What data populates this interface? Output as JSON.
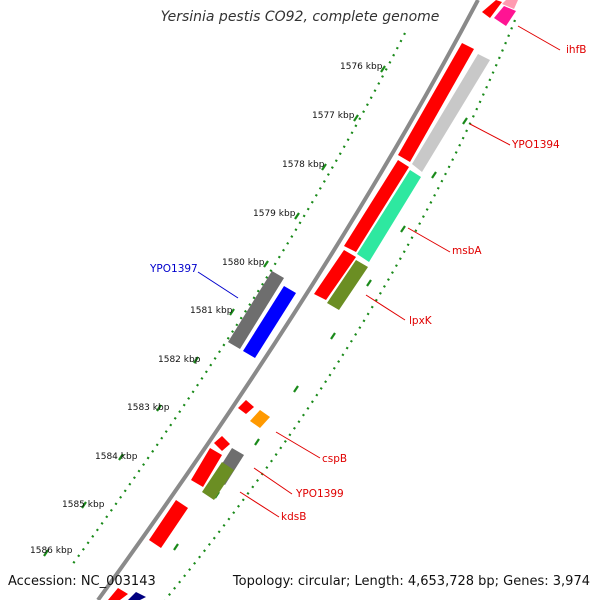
{
  "title": "Yersinia pestis CO92, complete genome",
  "accession_text": "Accession: NC_003143",
  "topology_text": "Topology: circular; Length: 4,653,728 bp; Genes: 3,974",
  "scale_labels": [
    "1576 kbp",
    "1577 kbp",
    "1578 kbp",
    "1579 kbp",
    "1580 kbp",
    "1581 kbp",
    "1582 kbp",
    "1583 kbp",
    "1584 kbp",
    "1585 kbp",
    "1586 kbp"
  ],
  "gene_labels": {
    "ihfB": "ihfB",
    "YPO1394": "YPO1394",
    "msbA": "msbA",
    "lpxK": "lpxK",
    "YPO1397": "YPO1397",
    "cspB": "cspB",
    "YPO1399": "YPO1399",
    "kdsB": "kdsB"
  },
  "colors": {
    "backbone": "#8a8a8a",
    "scale_dots": "#1a8a1a",
    "feature_red": "#ff0000",
    "feature_gray_light": "#c8c8c8",
    "feature_gray_dark": "#6e6e6e",
    "feature_green": "#6b8e23",
    "feature_aqua": "#2ee8a0",
    "feature_blue": "#0000ff",
    "feature_orange": "#ff9900",
    "feature_pink": "#ff1493",
    "label_red": "#e00000",
    "label_blue": "#0000cc"
  }
}
